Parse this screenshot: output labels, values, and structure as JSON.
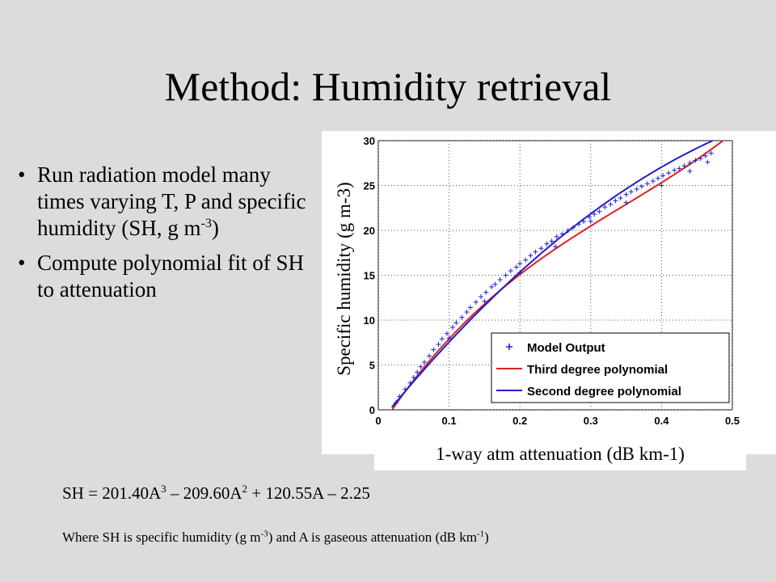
{
  "slide": {
    "title": "Method: Humidity retrieval",
    "bullets": [
      {
        "text_before": "Run radiation model many times varying T, P and specific humidity (SH, g m",
        "sup": "-3",
        "text_after": ")"
      },
      {
        "text_before": "Compute polynomial fit of SH to attenuation",
        "sup": "",
        "text_after": ""
      }
    ],
    "bullet_glyph": "•",
    "formula": {
      "p1": "SH = 201.40A",
      "s1": "3",
      "p2": " – 209.60A",
      "s2": "2",
      "p3": " + 120.55A – 2.25"
    },
    "note": {
      "p1": "Where SH is specific humidity (g m",
      "s1": "-3",
      "p2": ") and A is gaseous attenuation (dB km",
      "s2": "-1",
      "p3": ")"
    }
  },
  "chart_data": {
    "type": "line",
    "title": "",
    "xlabel": "1-way atm attenuation (dB km-1)",
    "ylabel": "Specific humidity (g m-3)",
    "xlim": [
      0,
      0.5
    ],
    "ylim": [
      0,
      30
    ],
    "xticks": [
      "0",
      "0.1",
      "0.2",
      "0.3",
      "0.4",
      "0.5"
    ],
    "yticks": [
      "0",
      "5",
      "10",
      "15",
      "20",
      "25",
      "30"
    ],
    "grid": true,
    "legend_placement": "bottom-right",
    "series": [
      {
        "name": "Model Output",
        "kind": "scatter",
        "color": "#1f1fcc",
        "marker": "+",
        "points": [
          [
            0.025,
            0.8
          ],
          [
            0.03,
            1.5
          ],
          [
            0.038,
            2.3
          ],
          [
            0.045,
            3.0
          ],
          [
            0.05,
            3.6
          ],
          [
            0.055,
            4.2
          ],
          [
            0.06,
            4.8
          ],
          [
            0.065,
            5.3
          ],
          [
            0.072,
            6.0
          ],
          [
            0.078,
            6.7
          ],
          [
            0.085,
            7.3
          ],
          [
            0.09,
            7.9
          ],
          [
            0.097,
            8.5
          ],
          [
            0.105,
            9.2
          ],
          [
            0.11,
            9.7
          ],
          [
            0.118,
            10.3
          ],
          [
            0.125,
            10.9
          ],
          [
            0.13,
            11.4
          ],
          [
            0.138,
            12.0
          ],
          [
            0.145,
            12.6
          ],
          [
            0.152,
            13.1
          ],
          [
            0.16,
            13.7
          ],
          [
            0.165,
            14.0
          ],
          [
            0.172,
            14.5
          ],
          [
            0.18,
            15.0
          ],
          [
            0.187,
            15.5
          ],
          [
            0.195,
            15.9
          ],
          [
            0.2,
            16.3
          ],
          [
            0.208,
            16.7
          ],
          [
            0.215,
            17.2
          ],
          [
            0.222,
            17.6
          ],
          [
            0.23,
            18.0
          ],
          [
            0.238,
            18.5
          ],
          [
            0.245,
            18.8
          ],
          [
            0.252,
            19.3
          ],
          [
            0.26,
            19.6
          ],
          [
            0.268,
            20.0
          ],
          [
            0.275,
            20.3
          ],
          [
            0.283,
            20.7
          ],
          [
            0.29,
            21.0
          ],
          [
            0.298,
            21.5
          ],
          [
            0.305,
            21.8
          ],
          [
            0.312,
            22.1
          ],
          [
            0.32,
            22.6
          ],
          [
            0.328,
            22.9
          ],
          [
            0.335,
            23.3
          ],
          [
            0.342,
            23.6
          ],
          [
            0.35,
            24.0
          ],
          [
            0.357,
            24.3
          ],
          [
            0.365,
            24.6
          ],
          [
            0.372,
            24.9
          ],
          [
            0.38,
            25.2
          ],
          [
            0.388,
            25.5
          ],
          [
            0.395,
            25.8
          ],
          [
            0.402,
            26.1
          ],
          [
            0.41,
            26.4
          ],
          [
            0.418,
            26.7
          ],
          [
            0.425,
            26.9
          ],
          [
            0.432,
            27.2
          ],
          [
            0.44,
            27.5
          ],
          [
            0.448,
            27.8
          ],
          [
            0.455,
            28.0
          ],
          [
            0.462,
            28.3
          ],
          [
            0.47,
            28.6
          ],
          [
            0.1,
            8.0
          ],
          [
            0.15,
            12.1
          ],
          [
            0.2,
            15.3
          ],
          [
            0.25,
            18.2
          ],
          [
            0.3,
            21.0
          ],
          [
            0.35,
            23.1
          ],
          [
            0.4,
            25.0
          ],
          [
            0.44,
            26.6
          ],
          [
            0.465,
            27.6
          ]
        ]
      },
      {
        "name": "Third degree polynomial",
        "kind": "line",
        "color": "#e02020",
        "coeffs": [
          201.4,
          -209.6,
          120.55,
          -2.25
        ],
        "x_range": [
          0.02,
          0.49
        ]
      },
      {
        "name": "Second degree polynomial",
        "kind": "line",
        "color": "#1f1fcc",
        "coeffs": [
          0,
          -65.0,
          97.5,
          -1.55
        ],
        "x_range": [
          0.015,
          0.5
        ]
      }
    ]
  }
}
